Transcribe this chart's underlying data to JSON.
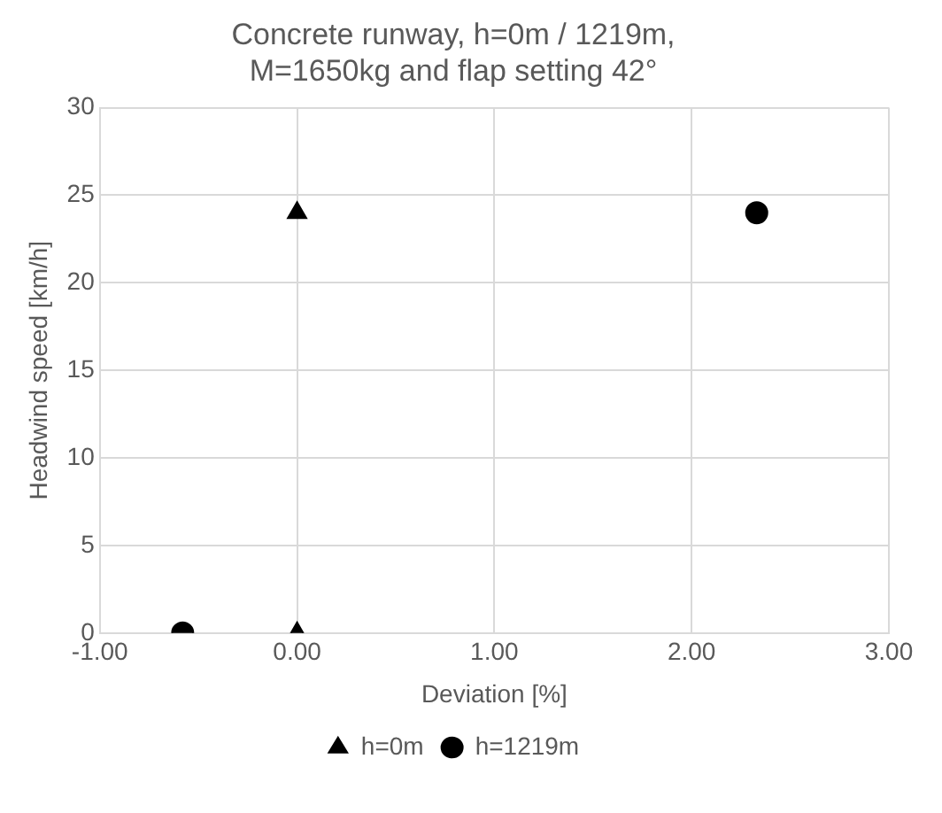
{
  "chart_data": {
    "type": "scatter",
    "title": [
      "Concrete runway, h=0m / 1219m,",
      "M=1650kg and flap setting 42°"
    ],
    "xlabel": "Deviation [%]",
    "ylabel": "Headwind speed [km/h]",
    "series": [
      {
        "name": "h=0m",
        "color": "#000000",
        "marker": "triangle",
        "x": [
          0,
          0
        ],
        "values": [
          24,
          0
        ]
      },
      {
        "name": "h=1219m",
        "color": "#000000",
        "marker": "circle",
        "x": [
          -0.58,
          2.33
        ],
        "values": [
          0,
          24
        ]
      }
    ],
    "xlim": [
      -1,
      3
    ],
    "xticks": [
      {
        "value": -1,
        "label": "-1.00"
      },
      {
        "value": 0,
        "label": "0.00"
      },
      {
        "value": 1,
        "label": "1.00"
      },
      {
        "value": 2,
        "label": "2.00"
      },
      {
        "value": 3,
        "label": "3.00"
      }
    ],
    "ylim": [
      0,
      30
    ],
    "yticks": [
      0,
      5,
      10,
      15,
      20,
      25,
      30
    ],
    "grid": true,
    "legend": "bottom"
  }
}
